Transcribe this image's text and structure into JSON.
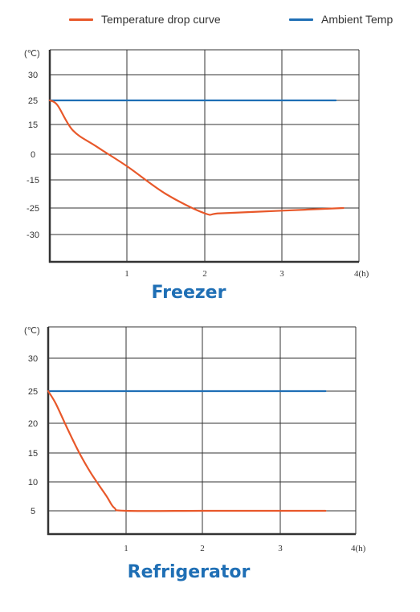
{
  "legend": {
    "items": [
      {
        "label": "Temperature drop curve",
        "color": "#e8582a"
      },
      {
        "label": "Ambient Temp",
        "color": "#1f6fb5"
      }
    ]
  },
  "chart_data": [
    {
      "type": "line",
      "title": "Freezer",
      "ylabel": "(℃)",
      "xlabel": "",
      "x_tick_labels": [
        "1",
        "2",
        "3",
        "4(h)"
      ],
      "y_tick_labels": [
        "30",
        "25",
        "15",
        "0",
        "-15",
        "-25",
        "-30"
      ],
      "grid": true,
      "series": [
        {
          "name": "Temperature drop curve",
          "color": "#e8582a",
          "x": [
            0,
            0.1,
            0.3,
            0.6,
            1.0,
            1.5,
            2.0,
            2.2,
            3.0,
            3.8
          ],
          "y": [
            25,
            23,
            12,
            4,
            -7,
            -20,
            -26,
            -26,
            -25.5,
            -25
          ]
        },
        {
          "name": "Ambient Temp",
          "color": "#1f6fb5",
          "x": [
            0,
            3.7
          ],
          "y": [
            25,
            25
          ]
        }
      ]
    },
    {
      "type": "line",
      "title": "Refrigerator",
      "ylabel": "(℃)",
      "xlabel": "",
      "x_tick_labels": [
        "1",
        "2",
        "3",
        "4(h)"
      ],
      "y_tick_labels": [
        "30",
        "25",
        "20",
        "15",
        "10",
        "5"
      ],
      "grid": true,
      "series": [
        {
          "name": "Temperature drop curve",
          "color": "#e8582a",
          "x": [
            0,
            0.1,
            0.25,
            0.4,
            0.55,
            0.75,
            0.85,
            1.0,
            2.0,
            3.0,
            3.6
          ],
          "y": [
            25,
            23,
            19,
            15,
            11.5,
            7.5,
            5.5,
            5,
            5,
            5,
            5
          ]
        },
        {
          "name": "Ambient Temp",
          "color": "#1f6fb5",
          "x": [
            0,
            3.6
          ],
          "y": [
            25,
            25
          ]
        }
      ]
    }
  ]
}
